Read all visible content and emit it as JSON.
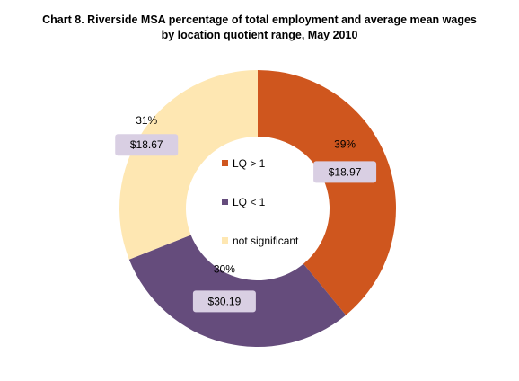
{
  "chart_data": {
    "type": "pie",
    "title": "Chart 8. Riverside  MSA percentage of total employment and average mean wages",
    "subtitle": "by location quotient range, May 2010",
    "slices": [
      {
        "name": "LQ > 1",
        "value": 39,
        "pct_label": "39%",
        "wage_label": "$18.97",
        "color": "#cf561e"
      },
      {
        "name": "LQ < 1",
        "value": 30,
        "pct_label": "30%",
        "wage_label": "$30.19",
        "color": "#654c7c"
      },
      {
        "name": "not significant",
        "value": 31,
        "pct_label": "31%",
        "wage_label": "$18.67",
        "color": "#fee7b2"
      }
    ],
    "label_box_color": "#d9cfe3",
    "legend": "center",
    "donut": true
  }
}
